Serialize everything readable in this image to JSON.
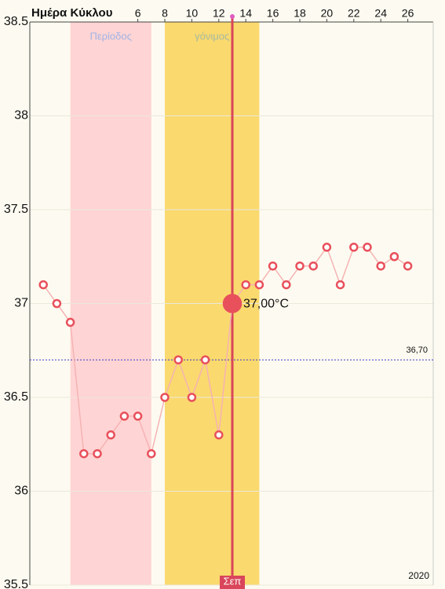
{
  "chart_data": {
    "type": "line",
    "axis_title": "Ημέρα Κύκλου",
    "x": [
      -1,
      0,
      1,
      2,
      3,
      4,
      5,
      6,
      7,
      8,
      9,
      10,
      11,
      12,
      13,
      14,
      15,
      16,
      17,
      18,
      19,
      20,
      21,
      22,
      23,
      24,
      25,
      26
    ],
    "series": [
      {
        "color": "#e8505b",
        "line_color": "#f5b3b3",
        "values": [
          37.1,
          37.0,
          36.9,
          36.2,
          36.2,
          36.3,
          36.4,
          36.4,
          36.2,
          36.5,
          36.7,
          36.5,
          36.7,
          36.3,
          37.0,
          37.1,
          37.1,
          37.2,
          37.1,
          37.2,
          37.2,
          37.3,
          37.1,
          37.3,
          37.3,
          37.2,
          37.25,
          37.2
        ]
      }
    ],
    "xlim": [
      -2,
      27.5
    ],
    "xticks": [
      6,
      8,
      10,
      12,
      14,
      16,
      18,
      20,
      22,
      24,
      26
    ],
    "ylim": [
      35.5,
      38.5
    ],
    "yticks": [
      35.5,
      36,
      36.5,
      37,
      37.5,
      38,
      38.5
    ],
    "grid": true,
    "bands": [
      {
        "name": "Περίοδος",
        "from": 1,
        "to": 7,
        "color": "#ffd4d4",
        "text_color": "#9fb4e6"
      },
      {
        "name": "γόνιμος",
        "from": 8,
        "to": 15,
        "color": "#fad96e",
        "text_color": "#a7b9a0"
      }
    ],
    "coverline": {
      "value": 36.7,
      "label": "36,70",
      "color": "#3b3bc9"
    },
    "selected": {
      "x": 13,
      "label": "37,00°C",
      "month": "Σεπ",
      "color": "#d9455a"
    },
    "year": "2020"
  }
}
